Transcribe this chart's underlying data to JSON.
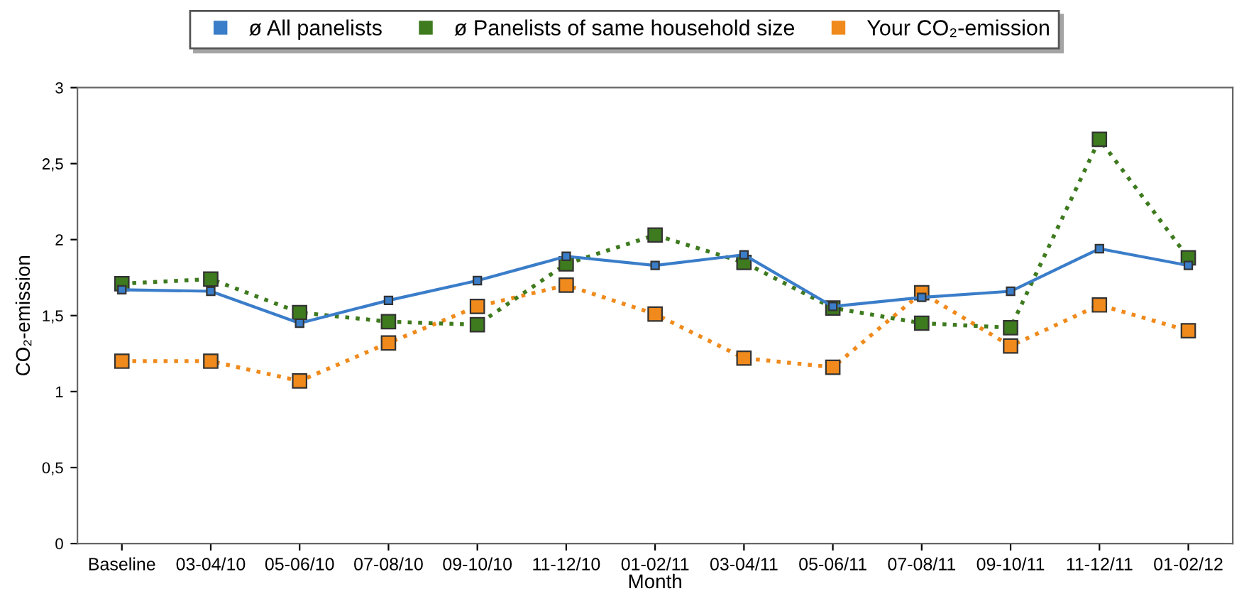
{
  "chart_data": {
    "type": "line",
    "xlabel": "Month",
    "ylabel": "CO₂-emission",
    "categories": [
      "Baseline",
      "03-04/10",
      "05-06/10",
      "07-08/10",
      "09-10/10",
      "11-12/10",
      "01-02/11",
      "03-04/11",
      "05-06/11",
      "07-08/11",
      "09-10/11",
      "11-12/11",
      "01-02/12"
    ],
    "series": [
      {
        "name": "ø All panelists",
        "color": "#3a7dc9",
        "line_style": "solid",
        "marker": "square",
        "values": [
          1.67,
          1.66,
          1.45,
          1.6,
          1.73,
          1.89,
          1.83,
          1.9,
          1.56,
          1.62,
          1.66,
          1.94,
          1.83
        ]
      },
      {
        "name": "ø Panelists of same household size",
        "color": "#3e7a1e",
        "line_style": "dotted",
        "marker": "square",
        "values": [
          1.71,
          1.74,
          1.52,
          1.46,
          1.44,
          1.84,
          2.03,
          1.85,
          1.55,
          1.45,
          1.42,
          2.66,
          1.88
        ]
      },
      {
        "name": "Your CO₂-emission",
        "color": "#f08a1c",
        "line_style": "dotted",
        "marker": "square",
        "values": [
          1.2,
          1.2,
          1.07,
          1.32,
          1.56,
          1.7,
          1.51,
          1.22,
          1.16,
          1.65,
          1.3,
          1.57,
          1.4
        ]
      }
    ],
    "ylim": [
      0,
      3
    ],
    "yticks": [
      0,
      {
        "value": 0.5,
        "label": "0,5"
      },
      1,
      {
        "value": 1.5,
        "label": "1,5"
      },
      2,
      {
        "value": 2.5,
        "label": "2,5"
      },
      3
    ],
    "grid": false,
    "legend": "top"
  }
}
